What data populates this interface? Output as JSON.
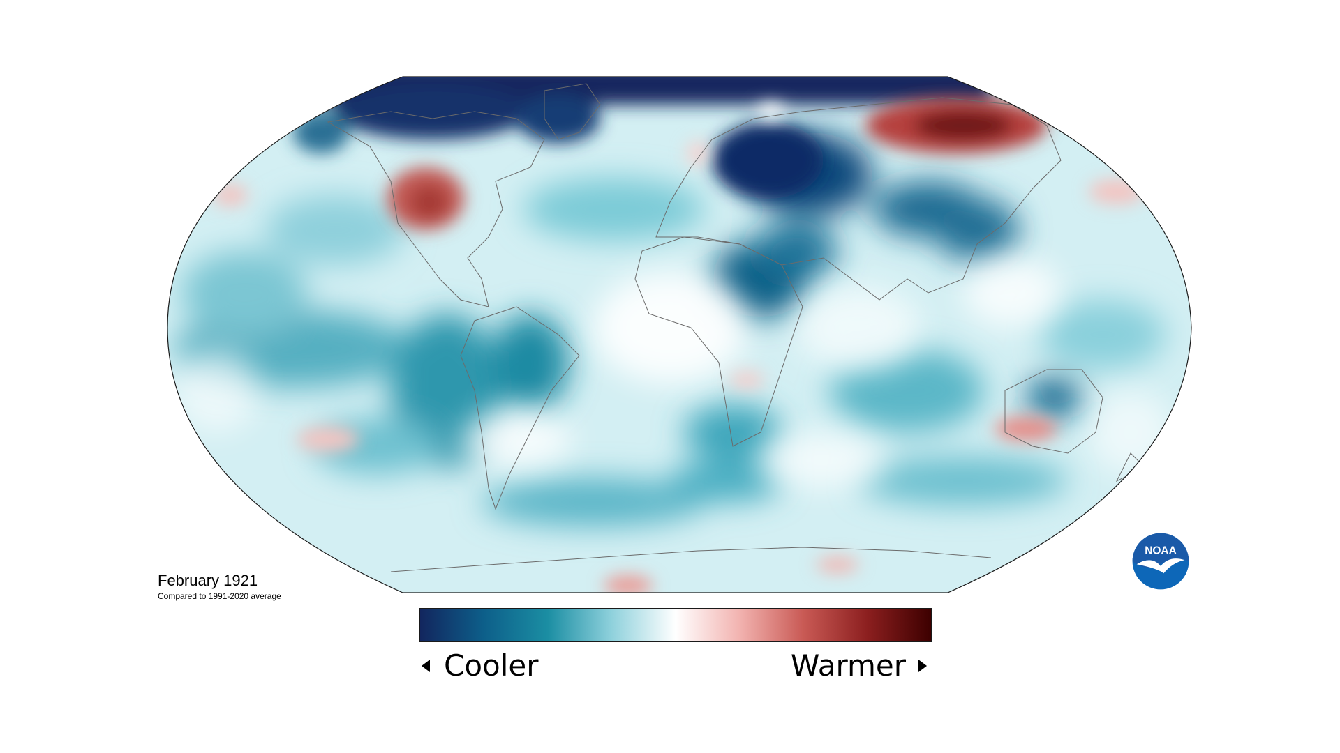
{
  "caption": {
    "title": "February 1921",
    "subtitle": "Compared to 1991-2020 average"
  },
  "legend": {
    "left_label": "Cooler",
    "right_label": "Warmer",
    "gradient_colors": [
      "#12265e",
      "#0d5f8a",
      "#1b8ea3",
      "#8fd1dc",
      "#ffffff",
      "#f2b3b0",
      "#c95a55",
      "#8c1f1f",
      "#3d0000"
    ]
  },
  "logo": {
    "text": "NOAA",
    "colors": {
      "sky": "#1a5aa8",
      "ocean": "#0d67b8",
      "bird": "#ffffff"
    }
  },
  "map": {
    "projection": "Robinson",
    "ocean_base_color": "#cfeef2",
    "anomaly_regions": [
      {
        "region": "Arctic / polar north",
        "anomaly": "cooler"
      },
      {
        "region": "Siberia",
        "anomaly": "warmer"
      },
      {
        "region": "Northern Canada",
        "anomaly": "warmer"
      },
      {
        "region": "Europe / Western Russia",
        "anomaly": "cooler"
      },
      {
        "region": "North Africa / Middle East",
        "anomaly": "cooler"
      },
      {
        "region": "Western Australia",
        "anomaly": "warmer"
      },
      {
        "region": "Northern Australia",
        "anomaly": "cooler"
      },
      {
        "region": "Southern Africa",
        "anomaly": "slightly warmer"
      },
      {
        "region": "South Pacific (east)",
        "anomaly": "slightly warmer"
      },
      {
        "region": "North Pacific (west)",
        "anomaly": "slightly warmer"
      },
      {
        "region": "Antarctica coast",
        "anomaly": "mixed"
      }
    ]
  }
}
